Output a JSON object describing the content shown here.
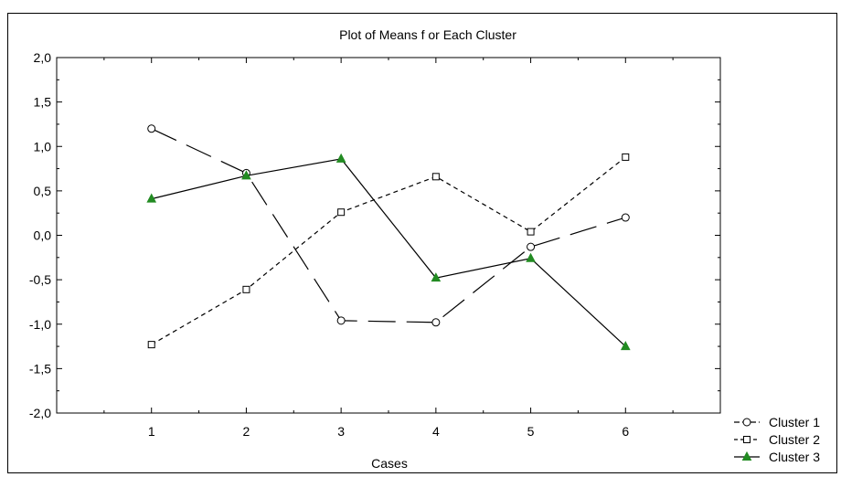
{
  "chart_data": {
    "type": "line",
    "title": "Plot of Means f or Each Cluster",
    "xlabel": "Cases",
    "ylabel": "",
    "categories": [
      "1",
      "2",
      "3",
      "4",
      "5",
      "6"
    ],
    "x": [
      1,
      2,
      3,
      4,
      5,
      6
    ],
    "xlim": [
      0,
      7
    ],
    "ylim": [
      -2.0,
      2.0
    ],
    "yticks": [
      "2,0",
      "1,5",
      "1,0",
      "0,5",
      "0,0",
      "-0,5",
      "-1,0",
      "-1,5",
      "-2,0"
    ],
    "ytick_values": [
      2.0,
      1.5,
      1.0,
      0.5,
      0.0,
      -0.5,
      -1.0,
      -1.5,
      -2.0
    ],
    "grid": false,
    "legend_position": "bottom-right, outside plot",
    "series": [
      {
        "name": "Cluster 1",
        "marker": "circle",
        "line_style": "long-dash",
        "color": "#000000",
        "values": [
          1.2,
          0.7,
          -0.96,
          -0.98,
          -0.13,
          0.2
        ]
      },
      {
        "name": "Cluster 2",
        "marker": "square",
        "line_style": "short-dash",
        "color": "#000000",
        "values": [
          -1.23,
          -0.61,
          0.26,
          0.66,
          0.04,
          0.88
        ]
      },
      {
        "name": "Cluster 3",
        "marker": "triangle",
        "line_style": "solid",
        "color": "#000000",
        "marker_color": "#228B22",
        "values": [
          0.41,
          0.67,
          0.86,
          -0.48,
          -0.26,
          -1.25
        ]
      }
    ]
  }
}
